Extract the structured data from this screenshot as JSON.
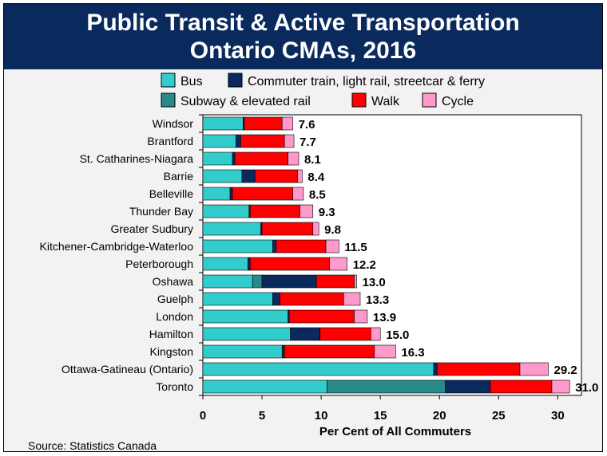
{
  "chart_data": {
    "type": "bar",
    "orientation": "horizontal",
    "stacked": true,
    "title": "Public Transit & Active Transportation",
    "subtitle": "Ontario CMAs, 2016",
    "xlabel": "Per Cent of All Commuters",
    "ylabel": "",
    "xlim": [
      0,
      32
    ],
    "xticks": [
      0,
      5,
      10,
      15,
      20,
      25,
      30
    ],
    "legend_position": "top",
    "grid": false,
    "colors": {
      "Bus": "#33cccc",
      "Commuter train, light rail, streetcar & ferry": "#0a2a5e",
      "Subway & elevated rail": "#2a8a8a",
      "Walk": "#ff0000",
      "Cycle": "#ff99cc"
    },
    "legend_order": [
      "Bus",
      "Commuter train, light rail, streetcar & ferry",
      "Subway & elevated rail",
      "Walk",
      "Cycle"
    ],
    "series_order": [
      "Bus",
      "Subway & elevated rail",
      "Commuter train, light rail, streetcar & ferry",
      "Walk",
      "Cycle"
    ],
    "categories": [
      "Windsor",
      "Brantford",
      "St. Catharines-Niagara",
      "Barrie",
      "Belleville",
      "Thunder Bay",
      "Greater Sudbury",
      "Kitchener-Cambridge-Waterloo",
      "Peterborough",
      "Oshawa",
      "Guelph",
      "London",
      "Hamilton",
      "Kingston",
      "Ottawa-Gatineau (Ontario)",
      "Toronto"
    ],
    "series": [
      {
        "name": "Bus",
        "values": [
          3.4,
          2.8,
          2.5,
          3.3,
          2.3,
          3.9,
          4.9,
          5.9,
          3.8,
          4.2,
          5.9,
          7.2,
          7.4,
          6.7,
          19.5,
          10.5
        ]
      },
      {
        "name": "Subway & elevated rail",
        "values": [
          0,
          0,
          0,
          0,
          0,
          0,
          0,
          0,
          0,
          0.8,
          0,
          0,
          0,
          0,
          0,
          10.0
        ]
      },
      {
        "name": "Commuter train, light rail, streetcar & ferry",
        "values": [
          0.1,
          0.4,
          0.2,
          1.1,
          0.2,
          0.1,
          0.1,
          0.3,
          0.2,
          4.6,
          0.6,
          0.1,
          2.5,
          0.2,
          0.3,
          3.8
        ]
      },
      {
        "name": "Walk",
        "values": [
          3.2,
          3.7,
          4.5,
          3.6,
          5.1,
          4.2,
          4.3,
          4.2,
          6.7,
          3.2,
          5.4,
          5.5,
          4.3,
          7.6,
          7.0,
          5.2
        ]
      },
      {
        "name": "Cycle",
        "values": [
          0.9,
          0.8,
          0.9,
          0.4,
          0.9,
          1.1,
          0.5,
          1.1,
          1.5,
          0.2,
          1.4,
          1.1,
          0.8,
          1.8,
          2.4,
          1.5
        ]
      }
    ],
    "totals": [
      "7.6",
      "7.7",
      "8.1",
      "8.4",
      "8.5",
      "9.3",
      "9.8",
      "11.5",
      "12.2",
      "13.0",
      "13.3",
      "13.9",
      "15.0",
      "16.3",
      "29.2",
      "31.0"
    ]
  },
  "source": "Source: Statistics Canada"
}
